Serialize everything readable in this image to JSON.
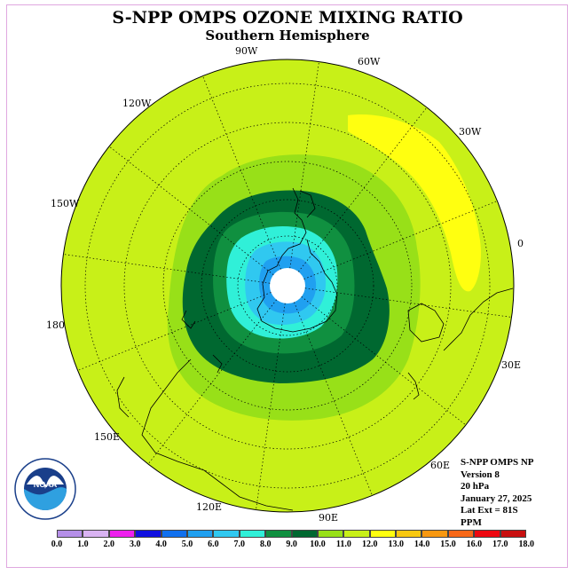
{
  "title": "S-NPP OMPS OZONE MIXING RATIO",
  "subtitle": "Southern Hemisphere",
  "longitude_labels": [
    "90W",
    "60W",
    "30W",
    "0",
    "120W",
    "150W",
    "180",
    "30E",
    "150E",
    "60E",
    "120E",
    "90E"
  ],
  "info": {
    "instrument": "S-NPP OMPS NP",
    "version": "Version 8",
    "level": "20 hPa",
    "date": "January 27, 2025",
    "lat_ext": "Lat Ext = 81S",
    "units": "PPM"
  },
  "logo": {
    "text": "NOAA",
    "icon": "noaa-logo"
  },
  "colorbar": {
    "ticks": [
      "0.0",
      "1.0",
      "2.0",
      "3.0",
      "4.0",
      "5.0",
      "6.0",
      "7.0",
      "8.0",
      "9.0",
      "10.0",
      "11.0",
      "12.0",
      "13.0",
      "14.0",
      "15.0",
      "16.0",
      "17.0",
      "18.0"
    ],
    "colors": [
      "#b58fe8",
      "#d9b3f2",
      "#ee20ee",
      "#1010e0",
      "#1070ee",
      "#20a0f0",
      "#30c8f0",
      "#30f0d8",
      "#109040",
      "#006830",
      "#98e018",
      "#c8f018",
      "#ffff10",
      "#f8c810",
      "#f89810",
      "#f86818",
      "#ee0810",
      "#c81010",
      "#8a6040"
    ]
  },
  "colors": {
    "background_field": "#c8f018",
    "high_field": "#ffff10",
    "pole_fill": "#ffffff"
  }
}
